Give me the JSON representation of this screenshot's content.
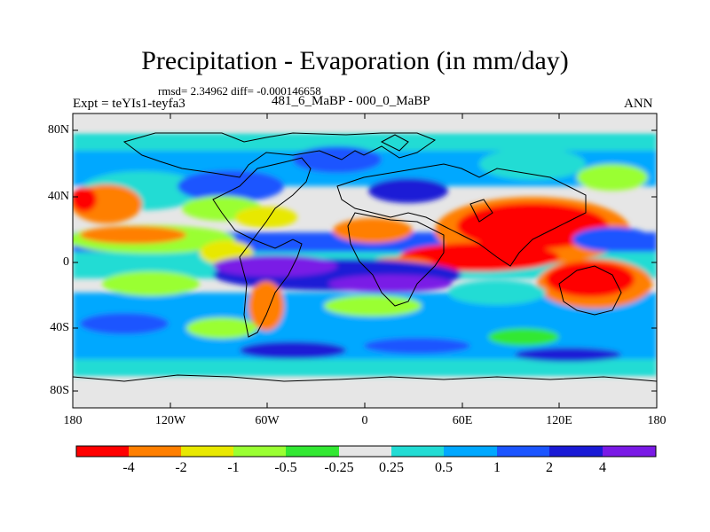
{
  "title": "Precipitation - Evaporation (in mm/day)",
  "stats": "rmsd= 2.34962 diff= -0.000146658",
  "experiment": "Expt = teYIs1-teyfa3",
  "period": "481_6_MaBP - 000_0_MaBP",
  "season": "ANN",
  "lat_ticks": [
    "80N",
    "40N",
    "0",
    "40S",
    "80S"
  ],
  "lon_ticks": [
    "180",
    "120W",
    "60W",
    "0",
    "60E",
    "120E",
    "180"
  ],
  "colorbar": {
    "labels": [
      "-4",
      "-2",
      "-1",
      "-0.5",
      "-0.25",
      "0.25",
      "0.5",
      "1",
      "2",
      "4"
    ],
    "colors": [
      "#ff0000",
      "#ff7f00",
      "#e8e800",
      "#9aff32",
      "#32e832",
      "#e6e6e6",
      "#22dcd4",
      "#00a8ff",
      "#1b55ff",
      "#1a1ad6",
      "#7a1ae6"
    ]
  },
  "map_colors": {
    "neutral": "#e6e6e6",
    "cyan": "#22dcd4",
    "lightblue": "#00a8ff",
    "blue": "#1b55ff",
    "darkblue": "#1a1ad6",
    "purple": "#7a1ae6",
    "green": "#32e832",
    "lightgreen": "#9aff32",
    "yellow": "#e8e800",
    "orange": "#ff7f00",
    "red": "#ff0000"
  }
}
